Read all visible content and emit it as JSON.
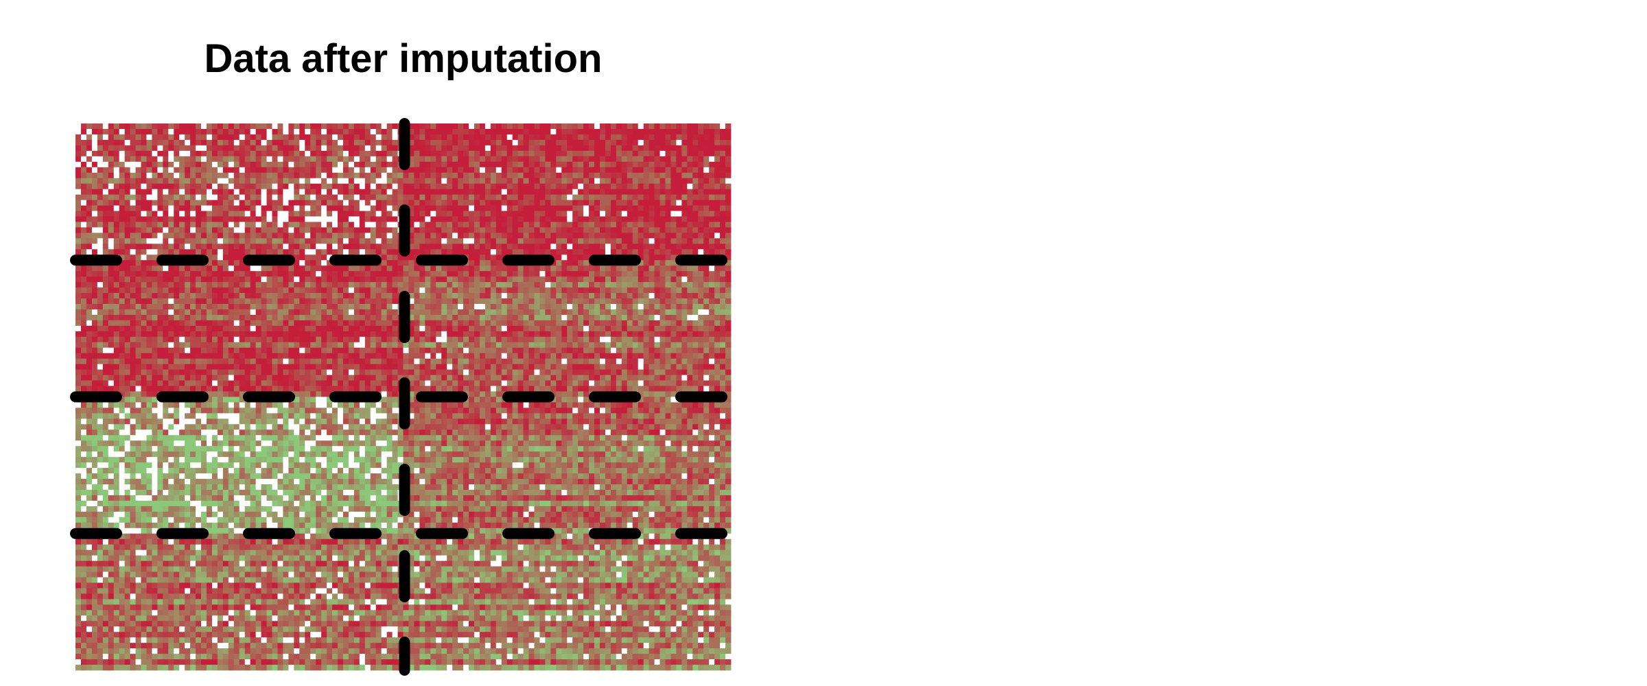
{
  "chart_data": {
    "type": "heatmap",
    "title": "Data after imputation",
    "xlabel": "",
    "ylabel": "",
    "legend": "none",
    "grid": false,
    "colors": {
      "high": "#c41e3a",
      "low": "#8cc87a",
      "missing": "#ffffff",
      "divider": "#000000"
    },
    "grid_size": {
      "columns": 120,
      "rows": 100
    },
    "column_groups": [
      {
        "start": 0,
        "end": 60
      },
      {
        "start": 60,
        "end": 120
      }
    ],
    "row_groups": [
      {
        "start": 0,
        "end": 25
      },
      {
        "start": 25,
        "end": 50
      },
      {
        "start": 50,
        "end": 75
      },
      {
        "start": 75,
        "end": 100
      }
    ],
    "block_means": [
      [
        0.78,
        0.92
      ],
      [
        0.8,
        0.62
      ],
      [
        0.22,
        0.55
      ],
      [
        0.55,
        0.45
      ]
    ],
    "block_missing_rates": [
      [
        0.18,
        0.03
      ],
      [
        0.03,
        0.04
      ],
      [
        0.2,
        0.03
      ],
      [
        0.07,
        0.06
      ]
    ],
    "column_dividers": [
      60
    ],
    "row_dividers": [
      25,
      50,
      75
    ]
  }
}
